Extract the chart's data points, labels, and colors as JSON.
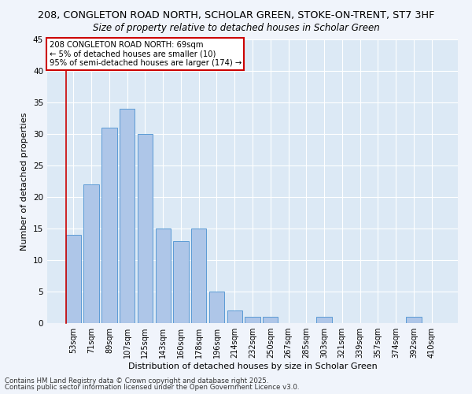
{
  "title1": "208, CONGLETON ROAD NORTH, SCHOLAR GREEN, STOKE-ON-TRENT, ST7 3HF",
  "title2": "Size of property relative to detached houses in Scholar Green",
  "xlabel": "Distribution of detached houses by size in Scholar Green",
  "ylabel": "Number of detached properties",
  "categories": [
    "53sqm",
    "71sqm",
    "89sqm",
    "107sqm",
    "125sqm",
    "143sqm",
    "160sqm",
    "178sqm",
    "196sqm",
    "214sqm",
    "232sqm",
    "250sqm",
    "267sqm",
    "285sqm",
    "303sqm",
    "321sqm",
    "339sqm",
    "357sqm",
    "374sqm",
    "392sqm",
    "410sqm"
  ],
  "values": [
    14,
    22,
    31,
    34,
    30,
    15,
    13,
    15,
    5,
    2,
    1,
    1,
    0,
    0,
    1,
    0,
    0,
    0,
    0,
    1,
    0
  ],
  "bar_color": "#aec6e8",
  "bar_edge_color": "#5b9bd5",
  "bg_color": "#dce9f5",
  "grid_color": "#ffffff",
  "annotation_text_line1": "208 CONGLETON ROAD NORTH: 69sqm",
  "annotation_text_line2": "← 5% of detached houses are smaller (10)",
  "annotation_text_line3": "95% of semi-detached houses are larger (174) →",
  "annotation_box_color": "#ffffff",
  "annotation_border_color": "#cc0000",
  "ylim": [
    0,
    45
  ],
  "yticks": [
    0,
    5,
    10,
    15,
    20,
    25,
    30,
    35,
    40,
    45
  ],
  "footer1": "Contains HM Land Registry data © Crown copyright and database right 2025.",
  "footer2": "Contains public sector information licensed under the Open Government Licence v3.0.",
  "fig_bg": "#f0f4fb"
}
